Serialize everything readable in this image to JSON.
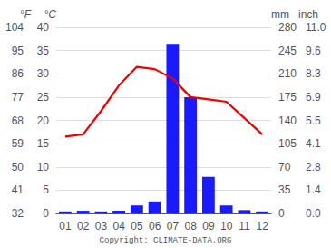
{
  "chart_data": {
    "type": "bar",
    "categories": [
      "01",
      "02",
      "03",
      "04",
      "05",
      "06",
      "07",
      "08",
      "09",
      "10",
      "11",
      "12"
    ],
    "series": [
      {
        "type": "bar",
        "axis": "y2",
        "color": "#1a1aff",
        "values": [
          3,
          4,
          3,
          4,
          12,
          18,
          255,
          175,
          55,
          12,
          5,
          3
        ]
      },
      {
        "type": "line",
        "color": "#ee0000",
        "values": [
          16.5,
          17.0,
          22.0,
          27.5,
          31.5,
          31.0,
          29.0,
          25.0,
          24.5,
          24.0,
          20.5,
          17.0
        ]
      }
    ],
    "ylabel": "°C",
    "ylim": [
      0,
      40
    ],
    "yticks": [
      0,
      5,
      10,
      15,
      20,
      25,
      30,
      35,
      40
    ],
    "ylabel_f": "°F",
    "yticks_f": [
      {
        "value": 0,
        "label": "32"
      },
      {
        "value": 5,
        "label": "41"
      },
      {
        "value": 10,
        "label": "50"
      },
      {
        "value": 15,
        "label": "59"
      },
      {
        "value": 20,
        "label": "68"
      },
      {
        "value": 25,
        "label": "77"
      },
      {
        "value": 30,
        "label": "86"
      },
      {
        "value": 35,
        "label": "95"
      },
      {
        "value": 40,
        "label": "104"
      }
    ],
    "y2label": "mm",
    "y2lim": [
      0,
      280
    ],
    "y2ticks": [
      0,
      35,
      70,
      105,
      140,
      175,
      210,
      245,
      280
    ],
    "y2label_inch": "inch",
    "y2ticks_inch": [
      {
        "value": 0,
        "label": "0.0"
      },
      {
        "value": 35,
        "label": "1.4"
      },
      {
        "value": 70,
        "label": "2.8"
      },
      {
        "value": 105,
        "label": "4.1"
      },
      {
        "value": 140,
        "label": "5.5"
      },
      {
        "value": 175,
        "label": "6.9"
      },
      {
        "value": 210,
        "label": "8.3"
      },
      {
        "value": 245,
        "label": "9.6"
      },
      {
        "value": 280,
        "label": "11.0"
      }
    ],
    "annotations": [
      "Copyright: CLIMATE-DATA.ORG"
    ],
    "grid": true
  }
}
